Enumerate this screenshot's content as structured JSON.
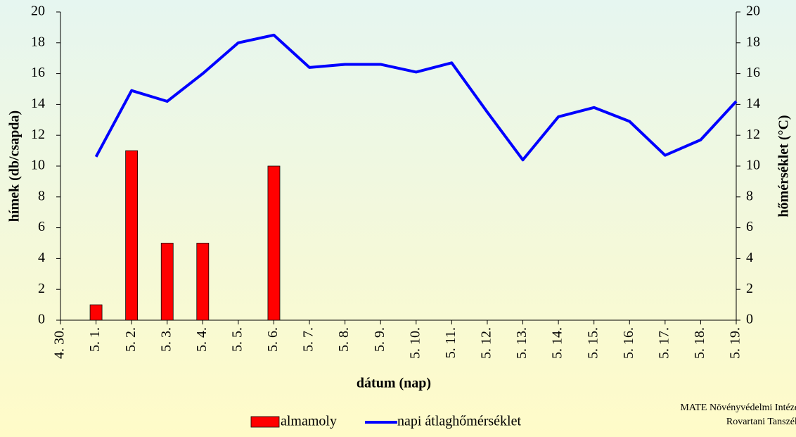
{
  "chart_data": {
    "type": "bar_line",
    "categories": [
      "4. 30.",
      "5. 1.",
      "5. 2.",
      "5. 3.",
      "5. 4.",
      "5. 5.",
      "5. 6.",
      "5. 7.",
      "5. 8.",
      "5. 9.",
      "5. 10.",
      "5. 11.",
      "5. 12.",
      "5. 13.",
      "5. 14.",
      "5. 15.",
      "5. 16.",
      "5. 17.",
      "5. 18.",
      "5. 19."
    ],
    "series": [
      {
        "name": "almamoly",
        "color": "#ff0000",
        "type": "bar",
        "values": [
          null,
          1,
          11,
          5,
          5,
          0,
          10,
          null,
          null,
          null,
          null,
          null,
          null,
          null,
          null,
          null,
          null,
          null,
          null,
          null
        ]
      },
      {
        "name": "napi átlaghőmérséklet",
        "color": "#0000ff",
        "type": "line",
        "axis": "y2",
        "values": [
          null,
          10.6,
          14.9,
          14.2,
          16.0,
          18.0,
          18.5,
          16.4,
          16.6,
          16.6,
          16.1,
          16.7,
          13.5,
          10.4,
          13.2,
          13.8,
          12.9,
          10.7,
          11.7,
          14.2
        ]
      }
    ],
    "ylabel": "hímek (db/csapda)",
    "y2label": "hőmérséklet (°C)",
    "xlabel": "dátum (nap)",
    "ylim": [
      0,
      20
    ],
    "yticks": [
      0,
      2,
      4,
      6,
      8,
      10,
      12,
      14,
      16,
      18,
      20
    ],
    "y2lim": [
      0,
      20
    ],
    "y2ticks": [
      0,
      2,
      4,
      6,
      8,
      10,
      12,
      14,
      16,
      18,
      20
    ],
    "legend": "bottom",
    "footnote": [
      "MATE Növényvédelmi Intézet",
      "Rovartani Tanszék"
    ]
  }
}
